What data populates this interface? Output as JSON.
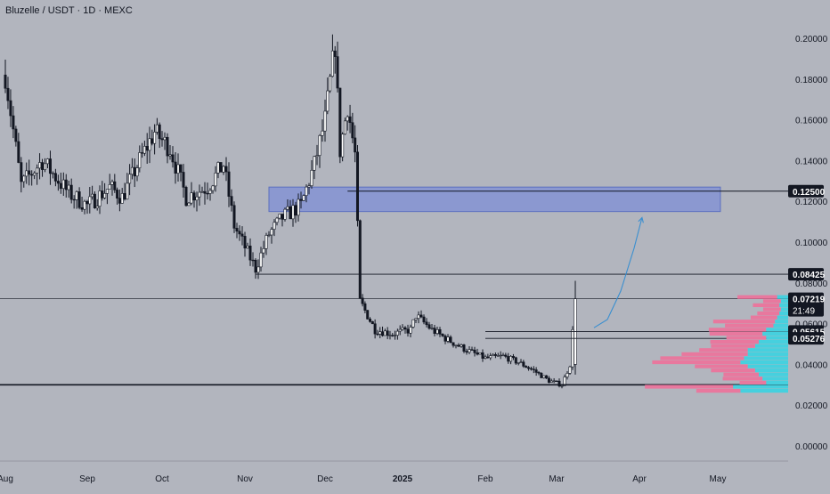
{
  "header": {
    "title": "Bluzelle / USDT · 1D · MEXC"
  },
  "colors": {
    "background": "#b2b5be",
    "candle_body": "#ffffff",
    "candle_outline": "#131722",
    "down_body": "#131722",
    "zone_fill": "#7d8fd6",
    "volume_pink": "#e8789e",
    "volume_cyan": "#46d0de",
    "projection": "#3a8fd0"
  },
  "chart_data": {
    "type": "candlestick",
    "title": "",
    "xlabel": "",
    "ylabel": "",
    "ylim": [
      0,
      0.208
    ],
    "y_ticks": [
      "0.20000",
      "0.18000",
      "0.16000",
      "0.14000",
      "0.12000",
      "0.10000",
      "0.08000",
      "0.06000",
      "0.04000",
      "0.02000",
      "0.00000"
    ],
    "x_ticks": [
      "Aug",
      "Sep",
      "Oct",
      "Nov",
      "Dec",
      "2025",
      "Feb",
      "Mar",
      "Apr",
      "May"
    ],
    "date_range": [
      "2024-08-01",
      "2025-03-08"
    ],
    "price_path": [
      {
        "date": "2024-08-01",
        "close": 0.182
      },
      {
        "date": "2024-08-07",
        "close": 0.128
      },
      {
        "date": "2024-08-15",
        "close": 0.14
      },
      {
        "date": "2024-08-25",
        "close": 0.124
      },
      {
        "date": "2024-09-01",
        "close": 0.118
      },
      {
        "date": "2024-09-10",
        "close": 0.127
      },
      {
        "date": "2024-09-15",
        "close": 0.122
      },
      {
        "date": "2024-09-22",
        "close": 0.14
      },
      {
        "date": "2024-09-28",
        "close": 0.154
      },
      {
        "date": "2024-10-04",
        "close": 0.146
      },
      {
        "date": "2024-10-10",
        "close": 0.122
      },
      {
        "date": "2024-10-18",
        "close": 0.127
      },
      {
        "date": "2024-10-24",
        "close": 0.138
      },
      {
        "date": "2024-10-28",
        "close": 0.108
      },
      {
        "date": "2024-11-05",
        "close": 0.087
      },
      {
        "date": "2024-11-10",
        "close": 0.104
      },
      {
        "date": "2024-11-15",
        "close": 0.112
      },
      {
        "date": "2024-11-22",
        "close": 0.118
      },
      {
        "date": "2024-11-27",
        "close": 0.138
      },
      {
        "date": "2024-12-01",
        "close": 0.16
      },
      {
        "date": "2024-12-05",
        "close": 0.197
      },
      {
        "date": "2024-12-07",
        "close": 0.145
      },
      {
        "date": "2024-12-10",
        "close": 0.167
      },
      {
        "date": "2024-12-13",
        "close": 0.143
      },
      {
        "date": "2024-12-15",
        "close": 0.071
      },
      {
        "date": "2024-12-21",
        "close": 0.057
      },
      {
        "date": "2024-12-28",
        "close": 0.055
      },
      {
        "date": "2025-01-04",
        "close": 0.057
      },
      {
        "date": "2025-01-06",
        "close": 0.064
      },
      {
        "date": "2025-01-12",
        "close": 0.057
      },
      {
        "date": "2025-01-18",
        "close": 0.052
      },
      {
        "date": "2025-01-25",
        "close": 0.047
      },
      {
        "date": "2025-02-01",
        "close": 0.043
      },
      {
        "date": "2025-02-08",
        "close": 0.044
      },
      {
        "date": "2025-02-14",
        "close": 0.041
      },
      {
        "date": "2025-02-20",
        "close": 0.037
      },
      {
        "date": "2025-02-26",
        "close": 0.032
      },
      {
        "date": "2025-03-03",
        "close": 0.03
      },
      {
        "date": "2025-03-06",
        "close": 0.04
      },
      {
        "date": "2025-03-08",
        "close": 0.072
      }
    ],
    "last_candle": {
      "date": "2025-03-08",
      "open": 0.04,
      "high": 0.081,
      "low": 0.035,
      "close": 0.07219
    },
    "price_labels": [
      {
        "label": "0.12500",
        "value": 0.125,
        "style": "dark"
      },
      {
        "label": "0.08425",
        "value": 0.08425,
        "style": "dark"
      },
      {
        "label": "0.07219",
        "value": 0.07219,
        "style": "dark",
        "countdown": "21:49"
      },
      {
        "label": "0.05615",
        "value": 0.05615,
        "style": "dark"
      },
      {
        "label": "0.05276",
        "value": 0.05276,
        "style": "dark"
      }
    ],
    "horizontal_lines": [
      {
        "value": 0.125,
        "from": "2024-12-10",
        "to": "axis"
      },
      {
        "value": 0.08425,
        "from": "2024-11-05",
        "to": "axis"
      },
      {
        "value": 0.07219,
        "from": "start",
        "to": "axis",
        "style": "thin"
      },
      {
        "value": 0.05615,
        "from": "2025-02-01",
        "to": "axis"
      },
      {
        "value": 0.05276,
        "from": "2025-02-01",
        "to": "axis"
      },
      {
        "value": 0.03,
        "from": "start",
        "to": "axis",
        "style": "bold"
      }
    ],
    "zone": {
      "from": "2024-11-10",
      "to": "2025-05-02",
      "low": 0.115,
      "high": 0.127
    },
    "projection_path": [
      {
        "date": "2025-03-15",
        "value": 0.058
      },
      {
        "date": "2025-03-20",
        "value": 0.062
      },
      {
        "date": "2025-03-25",
        "value": 0.076
      },
      {
        "date": "2025-03-30",
        "value": 0.097
      },
      {
        "date": "2025-04-02",
        "value": 0.112
      }
    ],
    "volume_profile": [
      {
        "price": 0.073,
        "pink": 0.45,
        "cyan": 0.15
      },
      {
        "price": 0.071,
        "pink": 0.2,
        "cyan": 0.1
      },
      {
        "price": 0.069,
        "pink": 0.3,
        "cyan": 0.12
      },
      {
        "price": 0.067,
        "pink": 0.2,
        "cyan": 0.1
      },
      {
        "price": 0.065,
        "pink": 0.25,
        "cyan": 0.12
      },
      {
        "price": 0.063,
        "pink": 0.3,
        "cyan": 0.15
      },
      {
        "price": 0.061,
        "pink": 0.7,
        "cyan": 0.18
      },
      {
        "price": 0.059,
        "pink": 0.55,
        "cyan": 0.2
      },
      {
        "price": 0.057,
        "pink": 0.65,
        "cyan": 0.3
      },
      {
        "price": 0.055,
        "pink": 0.6,
        "cyan": 0.35
      },
      {
        "price": 0.053,
        "pink": 0.45,
        "cyan": 0.3
      },
      {
        "price": 0.051,
        "pink": 0.55,
        "cyan": 0.4
      },
      {
        "price": 0.049,
        "pink": 0.5,
        "cyan": 0.45
      },
      {
        "price": 0.047,
        "pink": 0.55,
        "cyan": 0.55
      },
      {
        "price": 0.045,
        "pink": 0.75,
        "cyan": 0.55
      },
      {
        "price": 0.043,
        "pink": 0.95,
        "cyan": 0.6
      },
      {
        "price": 0.041,
        "pink": 1.0,
        "cyan": 0.65
      },
      {
        "price": 0.039,
        "pink": 0.6,
        "cyan": 0.55
      },
      {
        "price": 0.037,
        "pink": 0.5,
        "cyan": 0.45
      },
      {
        "price": 0.035,
        "pink": 0.4,
        "cyan": 0.4
      },
      {
        "price": 0.033,
        "pink": 0.45,
        "cyan": 0.35
      },
      {
        "price": 0.031,
        "pink": 0.3,
        "cyan": 0.3
      },
      {
        "price": 0.029,
        "pink": 1.0,
        "cyan": 0.75
      },
      {
        "price": 0.027,
        "pink": 0.5,
        "cyan": 0.65
      }
    ]
  }
}
